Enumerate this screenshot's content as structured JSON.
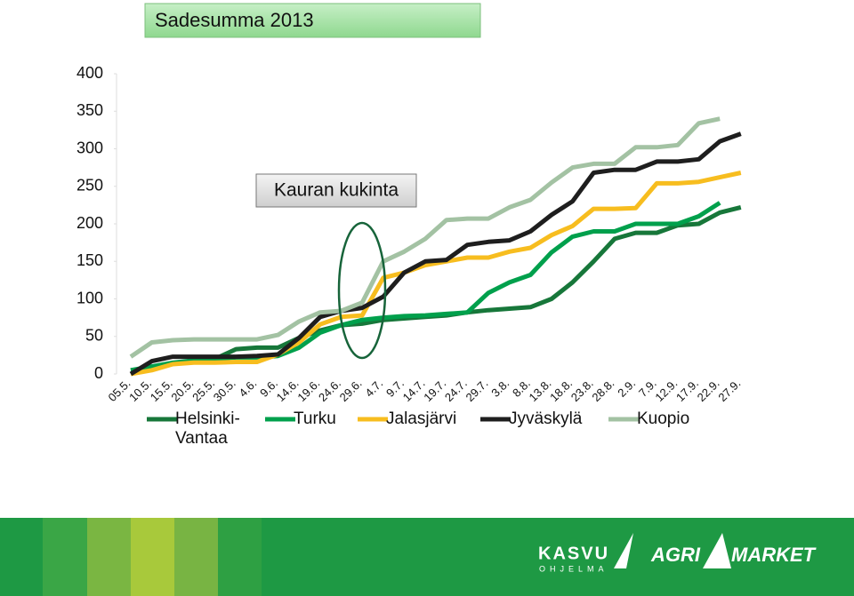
{
  "chart_data": {
    "type": "line",
    "title": "Sadesumma 2013",
    "annotation": "Kauran kukinta",
    "categories": [
      "05.5.",
      "10.5.",
      "15.5.",
      "20.5.",
      "25.5.",
      "30.5.",
      "4.6.",
      "9.6.",
      "14.6.",
      "19.6.",
      "24.6.",
      "29.6.",
      "4.7.",
      "9.7.",
      "14.7.",
      "19.7.",
      "24.7.",
      "29.7.",
      "3.8.",
      "8.8.",
      "13.8.",
      "18.8.",
      "23.8.",
      "28.8.",
      "2.9.",
      "7.9.",
      "12.9.",
      "17.9.",
      "22.9.",
      "27.9."
    ],
    "series": [
      {
        "name": "Helsinki-Vantaa",
        "color": "#17773a",
        "values": [
          5,
          8,
          14,
          18,
          20,
          33,
          35,
          35,
          48,
          58,
          65,
          67,
          72,
          74,
          76,
          78,
          82,
          85,
          87,
          89,
          100,
          122,
          150,
          180,
          188,
          188,
          198,
          200,
          215,
          222
        ]
      },
      {
        "name": "Turku",
        "color": "#00a04c",
        "values": [
          5,
          10,
          15,
          18,
          20,
          22,
          22,
          24,
          35,
          55,
          65,
          72,
          75,
          77,
          78,
          80,
          82,
          108,
          122,
          132,
          162,
          183,
          190,
          190,
          200,
          200,
          200,
          210,
          228,
          null
        ]
      },
      {
        "name": "Jalasjärvi",
        "color": "#f7bd1f",
        "values": [
          0,
          5,
          13,
          15,
          15,
          16,
          16,
          26,
          42,
          66,
          76,
          78,
          128,
          135,
          145,
          150,
          155,
          155,
          163,
          168,
          185,
          197,
          220,
          220,
          221,
          254,
          254,
          256,
          262,
          268
        ]
      },
      {
        "name": "Jyväskylä",
        "color": "#1e1e1e",
        "values": [
          0,
          17,
          23,
          23,
          23,
          23,
          24,
          26,
          48,
          76,
          84,
          88,
          103,
          135,
          150,
          152,
          172,
          176,
          178,
          190,
          212,
          230,
          268,
          272,
          272,
          283,
          283,
          286,
          310,
          320
        ]
      },
      {
        "name": "Kuopio",
        "color": "#a3c2a3",
        "values": [
          23,
          42,
          45,
          46,
          46,
          46,
          46,
          52,
          70,
          82,
          84,
          95,
          150,
          163,
          180,
          205,
          207,
          207,
          222,
          232,
          255,
          275,
          280,
          280,
          302,
          302,
          305,
          334,
          340,
          null
        ]
      }
    ],
    "ylim": [
      0,
      400
    ],
    "yticks": [
      0,
      50,
      100,
      150,
      200,
      250,
      300,
      350,
      400
    ],
    "grid": false,
    "footer": {
      "logo1": "KASVU",
      "logo1_sub": "OHJELMA",
      "logo2": "AGRI",
      "logo3": "MARKET"
    }
  }
}
